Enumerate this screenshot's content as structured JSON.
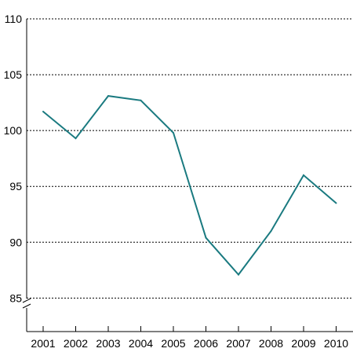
{
  "chart_data": {
    "type": "line",
    "title": "",
    "xlabel": "",
    "ylabel": "",
    "x": [
      "2001",
      "2002",
      "2003",
      "2004",
      "2005",
      "2006",
      "2007",
      "2008",
      "2009",
      "2010"
    ],
    "series": [
      {
        "values": [
          101.7,
          99.3,
          103.1,
          102.7,
          99.8,
          90.4,
          87.1,
          91.0,
          96.0,
          93.5
        ],
        "color": "#1a7a80"
      }
    ],
    "yticks": [
      85,
      90,
      95,
      100,
      105,
      110
    ],
    "ylim": [
      82,
      110
    ],
    "y_axis_break": true,
    "grid": true,
    "grid_style": "dotted",
    "legend": "none"
  }
}
